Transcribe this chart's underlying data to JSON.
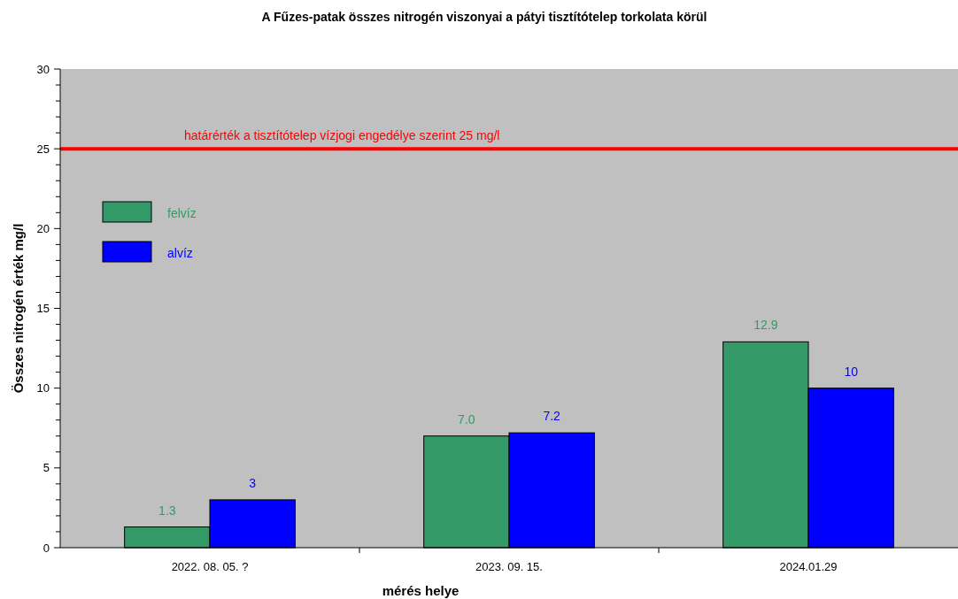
{
  "chart_data": {
    "type": "bar",
    "title": "A Fűzes-patak  összes nitrogén viszonyai a pátyi tisztítótelep torkolata  körül",
    "xlabel": "mérés helye",
    "ylabel": "Összes nitrogén érték mg/l",
    "categories": [
      "2022. 08. 05. ?",
      "2023. 09. 15.",
      "2024.01.29"
    ],
    "series": [
      {
        "name": "felvíz",
        "color": "#339966",
        "values": [
          1.3,
          7.0,
          12.9
        ],
        "value_labels": [
          "1.3",
          "7.0",
          "12.9"
        ]
      },
      {
        "name": "alvíz",
        "color": "#0000ff",
        "values": [
          3,
          7.2,
          10
        ],
        "value_labels": [
          "3",
          "7.2",
          "10"
        ]
      }
    ],
    "ylim": [
      0,
      30
    ],
    "yticks": [
      0,
      {
        "value": 1,
        "label": null
      },
      {
        "value": 2,
        "label": null
      },
      {
        "value": 3,
        "label": null
      },
      {
        "value": 4,
        "label": null
      },
      5,
      {
        "value": 6,
        "label": null
      },
      {
        "value": 7,
        "label": null
      },
      {
        "value": 8,
        "label": null
      },
      {
        "value": 9,
        "label": null
      },
      10,
      {
        "value": 11,
        "label": null
      },
      {
        "value": 12,
        "label": null
      },
      {
        "value": 13,
        "label": null
      },
      {
        "value": 14,
        "label": null
      },
      15,
      {
        "value": 16,
        "label": null
      },
      {
        "value": 17,
        "label": null
      },
      {
        "value": 18,
        "label": null
      },
      {
        "value": 19,
        "label": null
      },
      20,
      {
        "value": 21,
        "label": null
      },
      {
        "value": 22,
        "label": null
      },
      {
        "value": 23,
        "label": null
      },
      {
        "value": 24,
        "label": null
      },
      25,
      {
        "value": 26,
        "label": null
      },
      {
        "value": 27,
        "label": null
      },
      {
        "value": 28,
        "label": null
      },
      {
        "value": 29,
        "label": null
      },
      30
    ],
    "ref_lines": [
      {
        "axis": "y",
        "value": 25,
        "label": "határérték a tisztítótelep vízjogi engedélye szerint 25 mg/l",
        "color": "#ff0000"
      }
    ],
    "legend": "top left",
    "grid": false
  }
}
